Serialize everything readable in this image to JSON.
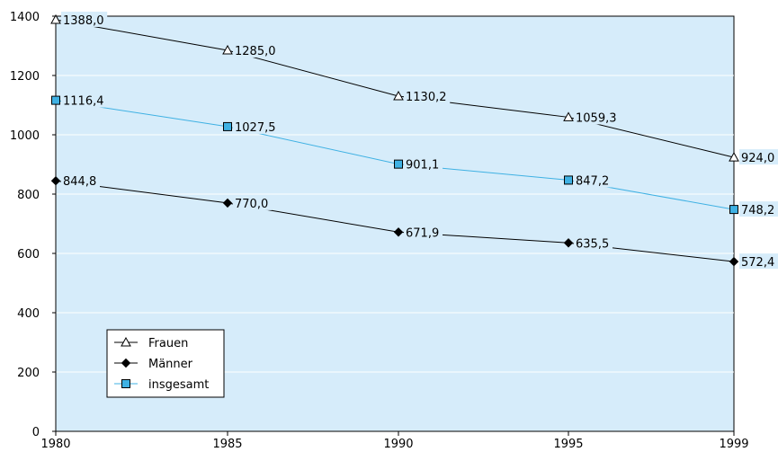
{
  "chart_data": {
    "type": "line",
    "title": "",
    "xlabel": "",
    "ylabel": "",
    "x": [
      "1980",
      "1985",
      "1990",
      "1995",
      "1999"
    ],
    "ylim": [
      0,
      1400
    ],
    "yticks": [
      "0",
      "200",
      "400",
      "600",
      "800",
      "1000",
      "1200",
      "1400"
    ],
    "grid": "horizontal",
    "legend_position": "bottom-left",
    "background": "#d6ecfa",
    "series": [
      {
        "name": "Frauen",
        "marker": "triangle-open",
        "color": "#000000",
        "values": [
          1388.0,
          1285.0,
          1130.2,
          1059.3,
          924.0
        ],
        "labels": [
          "1388,0",
          "1285,0",
          "1130,2",
          "1059,3",
          "924,0"
        ]
      },
      {
        "name": "Männer",
        "marker": "diamond-filled",
        "color": "#000000",
        "values": [
          844.8,
          770.0,
          671.9,
          635.5,
          572.4
        ],
        "labels": [
          "844,8",
          "770,0",
          "671,9",
          "635,5",
          "572,4"
        ]
      },
      {
        "name": "insgesamt",
        "marker": "square-filled",
        "color": "#3fb1e3",
        "values": [
          1116.4,
          1027.5,
          901.1,
          847.2,
          748.2
        ],
        "labels": [
          "1116,4",
          "1027,5",
          "901,1",
          "847,2",
          "748,2"
        ]
      }
    ]
  }
}
